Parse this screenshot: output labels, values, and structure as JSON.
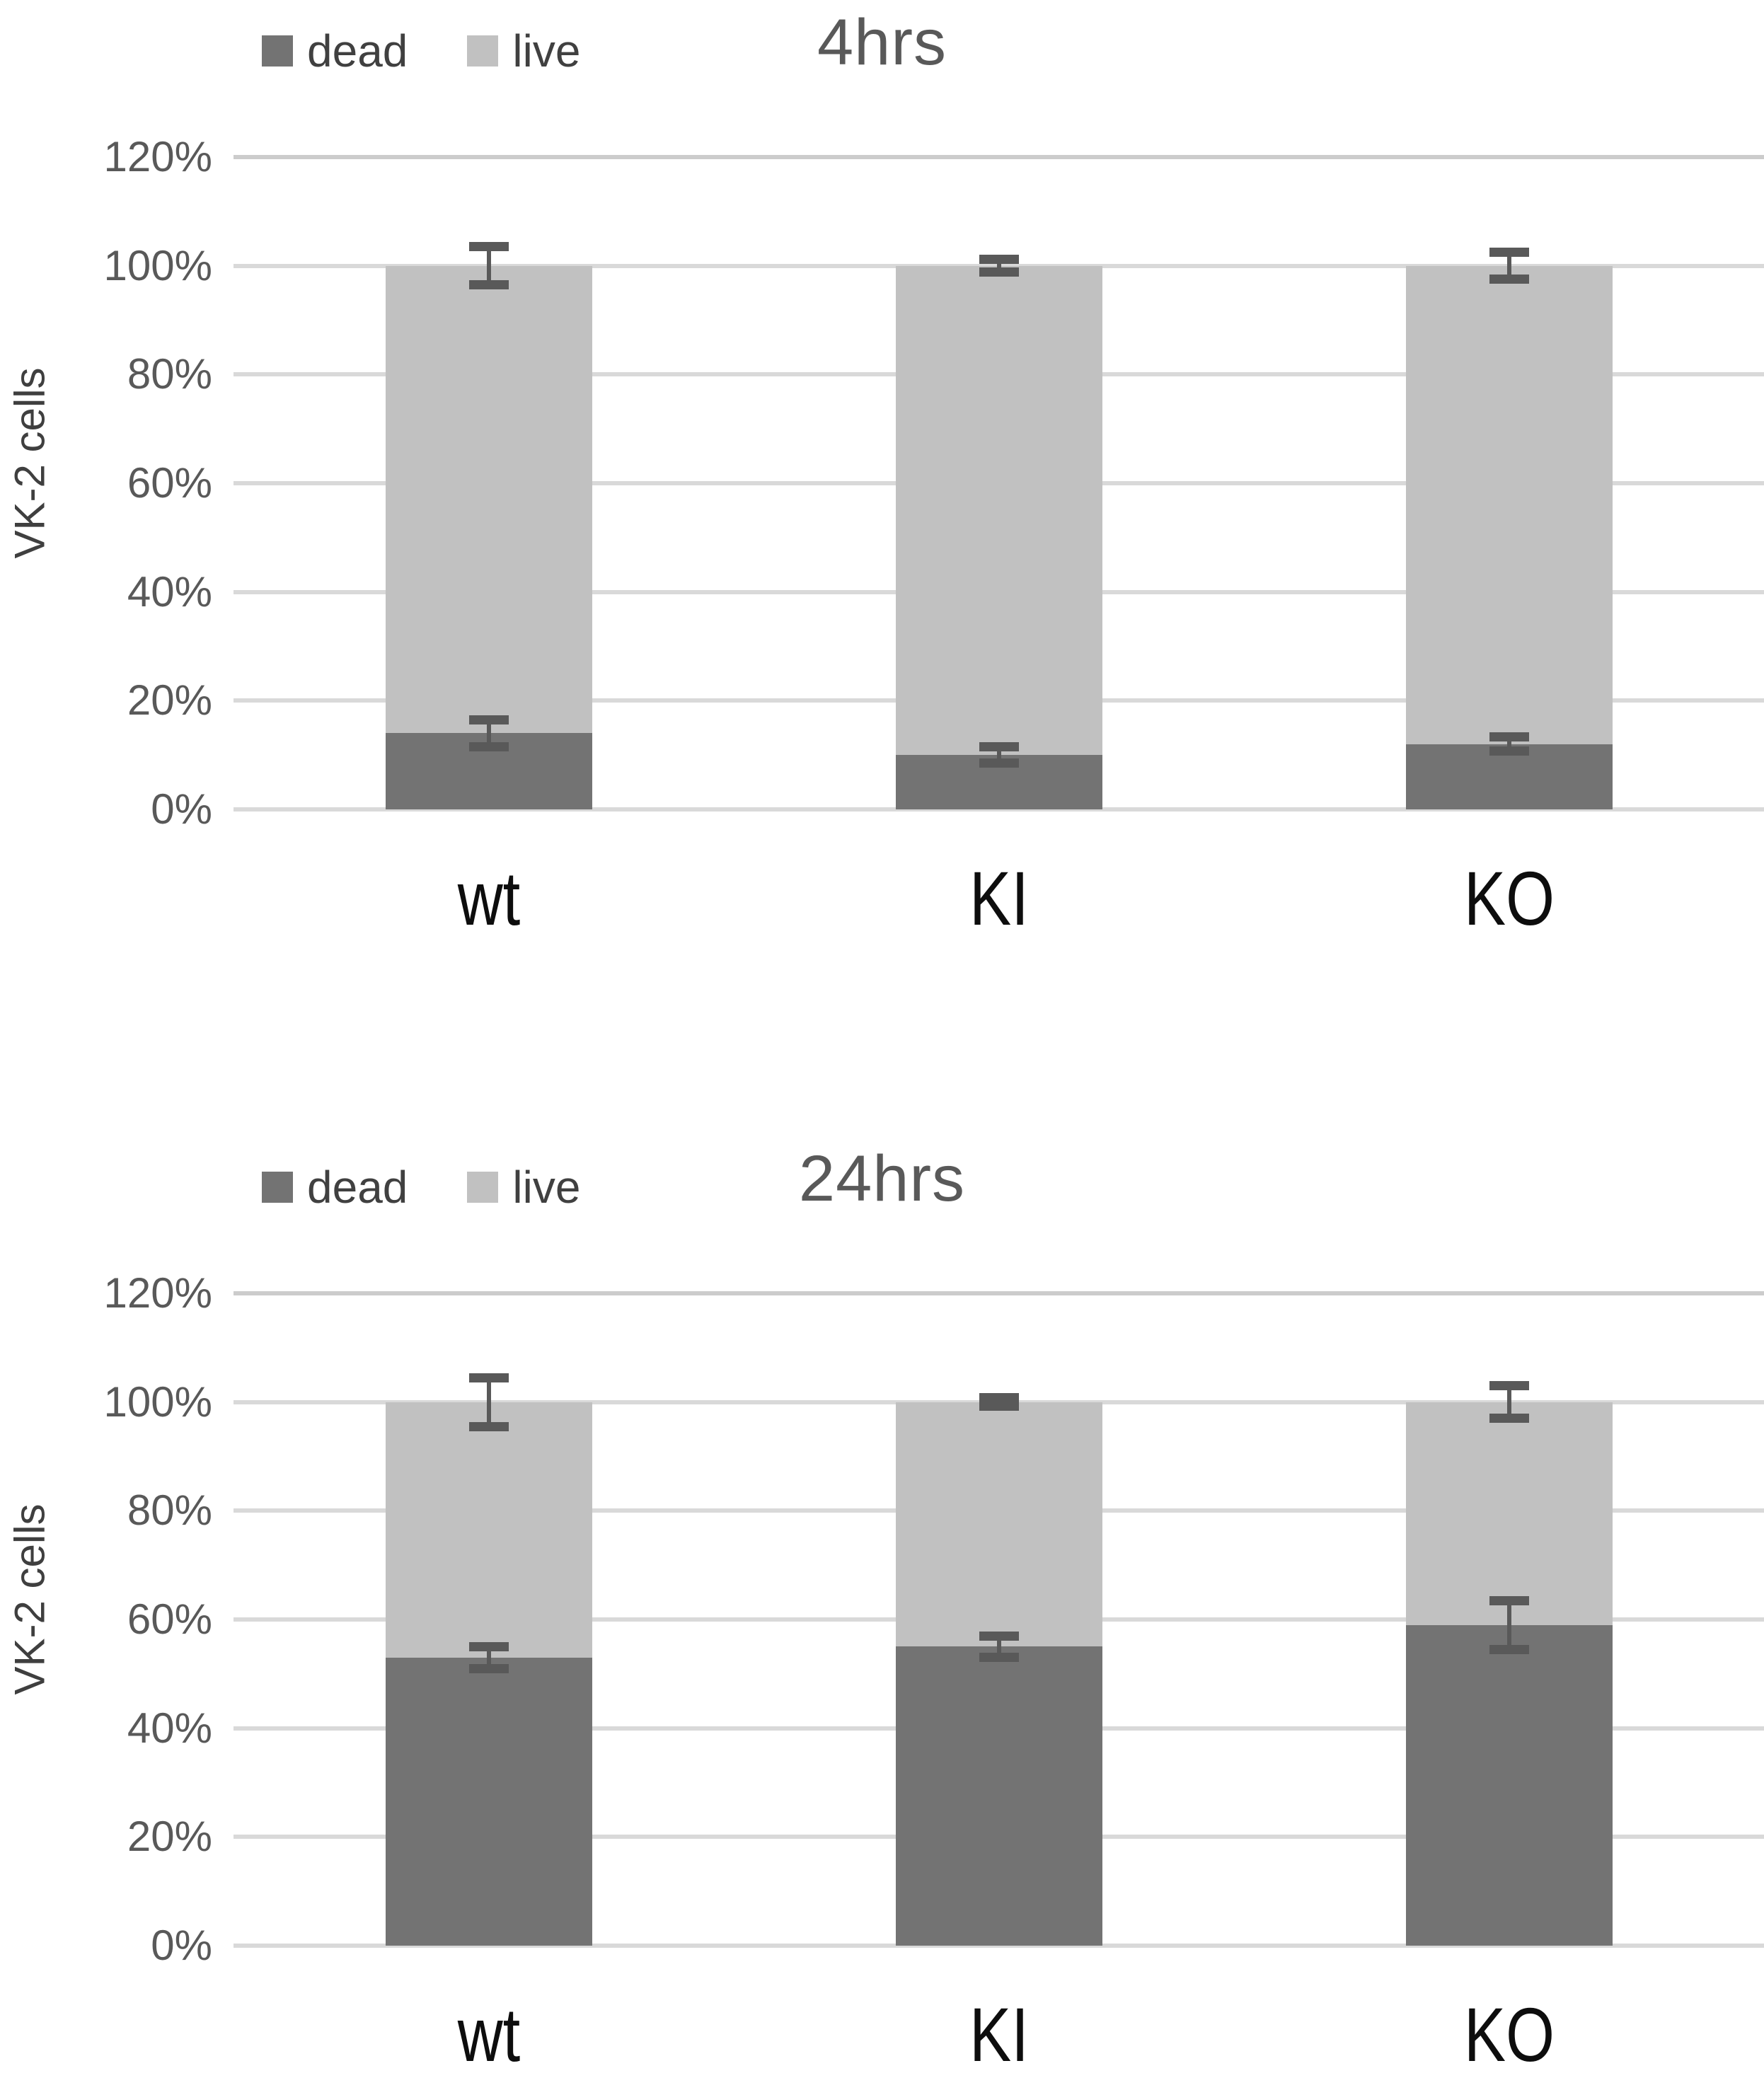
{
  "page": {
    "background": "#ffffff"
  },
  "colors": {
    "grid": "#d9d9d9",
    "error_bar": "#595959",
    "tick_text": "#595959",
    "title_text": "#595959",
    "legend_text": "#404040",
    "category_text": "#0d0d0d",
    "axis_label_text": "#3f3f3f",
    "dead": "#737373",
    "live": "#c1c1c1"
  },
  "chart_data": [
    {
      "type": "bar",
      "stacked": true,
      "title": "4hrs",
      "ylabel": "VK-2 cells",
      "xlabel": "",
      "categories": [
        "wt",
        "KI",
        "KO"
      ],
      "series": [
        {
          "name": "dead",
          "color": "#737373",
          "values": [
            14,
            10,
            12
          ],
          "error_bars": [
            2.5,
            1.5,
            1.3
          ]
        },
        {
          "name": "live",
          "color": "#c1c1c1",
          "values": [
            86,
            90,
            88
          ],
          "error_bars": [
            3.5,
            1.2,
            2.5
          ]
        }
      ],
      "stack_totals": [
        100,
        100,
        100
      ],
      "ylim": [
        0,
        120
      ],
      "ytick_step": 20,
      "ytick_labels": [
        "0%",
        "20%",
        "40%",
        "60%",
        "80%",
        "100%",
        "120%"
      ],
      "grid": true,
      "legend_position": "top-left",
      "error_bars_note": "dead errors drawn at dead-segment top; live errors drawn at stack top (100%)"
    },
    {
      "type": "bar",
      "stacked": true,
      "title": "24hrs",
      "ylabel": "VK-2 cells",
      "xlabel": "",
      "categories": [
        "wt",
        "KI",
        "KO"
      ],
      "series": [
        {
          "name": "dead",
          "color": "#737373",
          "values": [
            53,
            55,
            59
          ],
          "error_bars": [
            2,
            2,
            4.5
          ]
        },
        {
          "name": "live",
          "color": "#c1c1c1",
          "values": [
            47,
            45,
            41
          ],
          "error_bars": [
            4.5,
            0.8,
            3
          ]
        }
      ],
      "stack_totals": [
        100,
        100,
        100
      ],
      "ylim": [
        0,
        120
      ],
      "ytick_step": 20,
      "ytick_labels": [
        "0%",
        "20%",
        "40%",
        "60%",
        "80%",
        "100%",
        "120%"
      ],
      "grid": true,
      "legend_position": "top-left",
      "error_bars_note": "dead errors drawn at dead-segment top; live errors drawn at stack top (100%)"
    }
  ]
}
